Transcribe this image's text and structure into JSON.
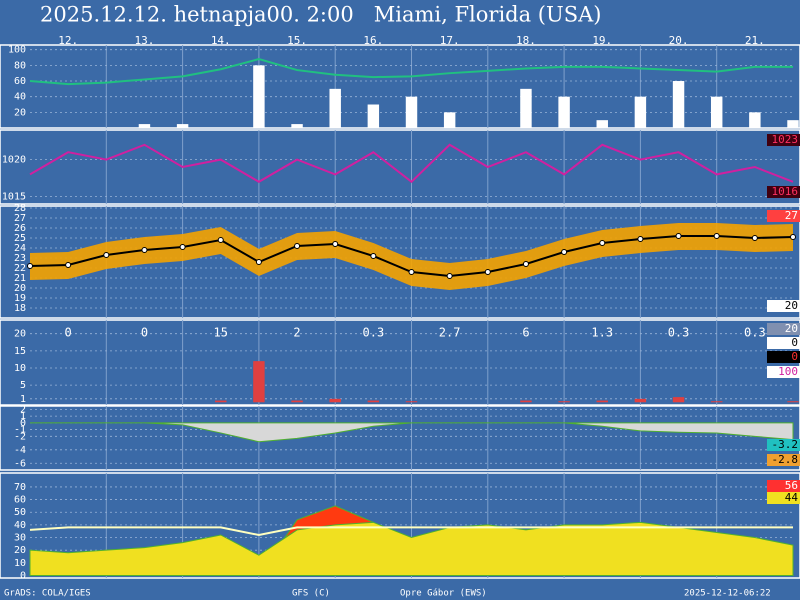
{
  "title": "2025.12.12. hetnapja00. 2:00   Miami, Florida (USA)",
  "footer": [
    "GrADS: COLA/IGES",
    "GFS (C)",
    "Opre Gábor (EWS)",
    "2025-12-12-06:22"
  ],
  "chart_data": [
    {
      "type": "bar",
      "xlim": [
        0,
        240
      ],
      "ylim": [
        0,
        106
      ],
      "yticks": [
        20,
        40,
        60,
        80,
        100
      ],
      "xticks": [
        {
          "value": 12,
          "label": "12."
        },
        {
          "value": 36,
          "label": "13."
        },
        {
          "value": 60,
          "label": "14."
        },
        {
          "value": 84,
          "label": "15."
        },
        {
          "value": 108,
          "label": "16."
        },
        {
          "value": 132,
          "label": "17."
        },
        {
          "value": 156,
          "label": "18."
        },
        {
          "value": 180,
          "label": "19."
        },
        {
          "value": 204,
          "label": "20."
        },
        {
          "value": 228,
          "label": "21."
        }
      ],
      "x": [
        0,
        12,
        24,
        36,
        48,
        60,
        72,
        84,
        96,
        108,
        120,
        132,
        144,
        156,
        168,
        180,
        192,
        204,
        216,
        228,
        240
      ],
      "series": [
        {
          "type": "bar",
          "color": "#ffffff",
          "values": [
            0,
            0,
            0,
            5,
            5,
            0,
            80,
            5,
            50,
            30,
            40,
            20,
            0,
            50,
            40,
            10,
            40,
            60,
            40,
            20,
            10
          ]
        },
        {
          "type": "line",
          "color": "#20c080",
          "values": [
            60,
            56,
            58,
            62,
            66,
            75,
            88,
            74,
            68,
            65,
            66,
            70,
            73,
            76,
            78,
            78,
            76,
            74,
            72,
            78,
            78
          ]
        }
      ]
    },
    {
      "type": "line",
      "xlim": [
        0,
        240
      ],
      "ylim": [
        1014,
        1024
      ],
      "yticks": [
        1015,
        1020
      ],
      "x": [
        0,
        12,
        24,
        36,
        48,
        60,
        72,
        84,
        96,
        108,
        120,
        132,
        144,
        156,
        168,
        180,
        192,
        204,
        216,
        228,
        240
      ],
      "series": [
        {
          "type": "line",
          "color": "#d020a0",
          "values": [
            1018,
            1021,
            1020,
            1022,
            1019,
            1020,
            1017,
            1020,
            1018,
            1021,
            1017,
            1022,
            1019,
            1021,
            1018,
            1022,
            1020,
            1021,
            1018,
            1019,
            1017
          ]
        }
      ],
      "side_labels": [
        {
          "value": 1023,
          "bg": "#400010",
          "fg": "#ff3060"
        },
        {
          "value": 1016,
          "bg": "#400010",
          "fg": "#ff3060"
        }
      ]
    },
    {
      "type": "line",
      "xlim": [
        0,
        240
      ],
      "ylim": [
        17,
        28.2
      ],
      "yticks": [
        18,
        19,
        20,
        21,
        22,
        23,
        24,
        25,
        26,
        27,
        28
      ],
      "x": [
        0,
        12,
        24,
        36,
        48,
        60,
        72,
        84,
        96,
        108,
        120,
        132,
        144,
        156,
        168,
        180,
        192,
        204,
        216,
        228,
        240
      ],
      "series": [
        {
          "type": "band",
          "color": "#f5a300",
          "low": [
            20.8,
            20.9,
            21.9,
            22.4,
            22.7,
            23.4,
            21.2,
            22.8,
            23.0,
            21.8,
            20.2,
            19.8,
            20.2,
            21.0,
            22.2,
            23.1,
            23.5,
            23.8,
            23.8,
            23.6,
            23.7
          ],
          "high": [
            23.5,
            23.6,
            24.6,
            25.1,
            25.4,
            26.1,
            23.9,
            25.5,
            25.7,
            24.5,
            22.9,
            22.5,
            22.9,
            23.7,
            24.9,
            25.8,
            26.2,
            26.5,
            26.5,
            26.3,
            26.4
          ]
        },
        {
          "type": "line",
          "color": "#000000",
          "markers": true,
          "values": [
            22.2,
            22.3,
            23.3,
            23.8,
            24.1,
            24.8,
            22.6,
            24.2,
            24.4,
            23.2,
            21.6,
            21.2,
            21.6,
            22.4,
            23.6,
            24.5,
            24.9,
            25.2,
            25.2,
            25.0,
            25.1
          ]
        }
      ],
      "side_labels": [
        {
          "value": 27,
          "bg": "#ff4040",
          "fg": "#ffffff"
        },
        {
          "value": 20,
          "bg": "#ffffff",
          "fg": "#000000"
        }
      ]
    },
    {
      "type": "bar",
      "xlim": [
        0,
        240
      ],
      "ylim": [
        -0.8,
        24
      ],
      "yticks": [
        1,
        5,
        10,
        15,
        20
      ],
      "x": [
        0,
        12,
        24,
        36,
        48,
        60,
        72,
        84,
        96,
        108,
        120,
        132,
        144,
        156,
        168,
        180,
        192,
        204,
        216,
        228,
        240
      ],
      "series": [
        {
          "type": "bar",
          "color": "#e04040",
          "values": [
            0,
            0,
            0,
            0,
            0,
            0.5,
            12,
            0.5,
            1,
            0.5,
            0.3,
            0,
            0,
            0.5,
            0.3,
            0.5,
            1,
            1.5,
            0.3,
            0,
            0.3
          ]
        }
      ],
      "daily_x": [
        12,
        36,
        60,
        84,
        108,
        132,
        156,
        180,
        204,
        228
      ],
      "daily_totals": [
        0,
        0,
        15,
        2,
        0.3,
        2.7,
        6,
        1.3,
        0.3,
        0.3
      ],
      "side_labels": [
        {
          "value": 20,
          "bg": "#8090b0",
          "fg": "#ffffff"
        },
        {
          "value": 0,
          "bg": "#ffffff",
          "fg": "#000000"
        },
        {
          "value": 0,
          "bg": "#000000",
          "fg": "#ff3030"
        },
        {
          "value": 100,
          "bg": "#ffffff",
          "fg": "#d020a0"
        }
      ]
    },
    {
      "type": "area",
      "xlim": [
        0,
        240
      ],
      "ylim": [
        -7,
        2.5
      ],
      "yticks": [
        2,
        1,
        0,
        -1,
        -2,
        -4,
        -6
      ],
      "x": [
        0,
        12,
        24,
        36,
        48,
        60,
        72,
        84,
        96,
        108,
        120,
        132,
        144,
        156,
        168,
        180,
        192,
        204,
        216,
        228,
        240
      ],
      "series": [
        {
          "type": "area",
          "color": "#d8d8d8",
          "values": [
            0,
            0,
            0,
            0,
            -0.3,
            -1.5,
            -2.8,
            -2.3,
            -1.5,
            -0.5,
            0,
            0,
            0,
            0,
            0,
            -0.5,
            -1.2,
            -1.4,
            -1.5,
            -2.0,
            -2.5
          ]
        }
      ],
      "side_labels": [
        {
          "value": -3.2,
          "bg": "#20c0c0",
          "fg": "#000000"
        },
        {
          "value": -2.8,
          "bg": "#f0a030",
          "fg": "#000000"
        }
      ]
    },
    {
      "type": "area",
      "xlim": [
        0,
        240
      ],
      "ylim": [
        -2,
        81
      ],
      "yticks": [
        0,
        10,
        20,
        30,
        40,
        50,
        60,
        70
      ],
      "x": [
        0,
        12,
        24,
        36,
        48,
        60,
        72,
        84,
        96,
        108,
        120,
        132,
        144,
        156,
        168,
        180,
        192,
        204,
        216,
        228,
        240
      ],
      "series": [
        {
          "type": "area",
          "color": "#ff3a10",
          "values": [
            0,
            0,
            0,
            0,
            0,
            0,
            0,
            44,
            55,
            42,
            0,
            0,
            0,
            0,
            0,
            0,
            0,
            0,
            0,
            0,
            0
          ]
        },
        {
          "type": "area",
          "color": "#f0e020",
          "values": [
            20,
            18,
            20,
            22,
            26,
            32,
            16,
            36,
            40,
            42,
            30,
            38,
            40,
            36,
            40,
            40,
            42,
            38,
            34,
            30,
            24
          ]
        },
        {
          "type": "line",
          "color": "#ffffc0",
          "values": [
            36,
            38,
            38,
            38,
            38,
            38,
            32,
            38,
            38,
            38,
            38,
            38,
            38,
            38,
            38,
            38,
            38,
            38,
            38,
            38,
            38
          ]
        }
      ],
      "side_labels": [
        {
          "value": 56,
          "bg": "#ff3030",
          "fg": "#ffffff"
        },
        {
          "value": 44,
          "bg": "#f0e020",
          "fg": "#000000"
        }
      ]
    }
  ]
}
